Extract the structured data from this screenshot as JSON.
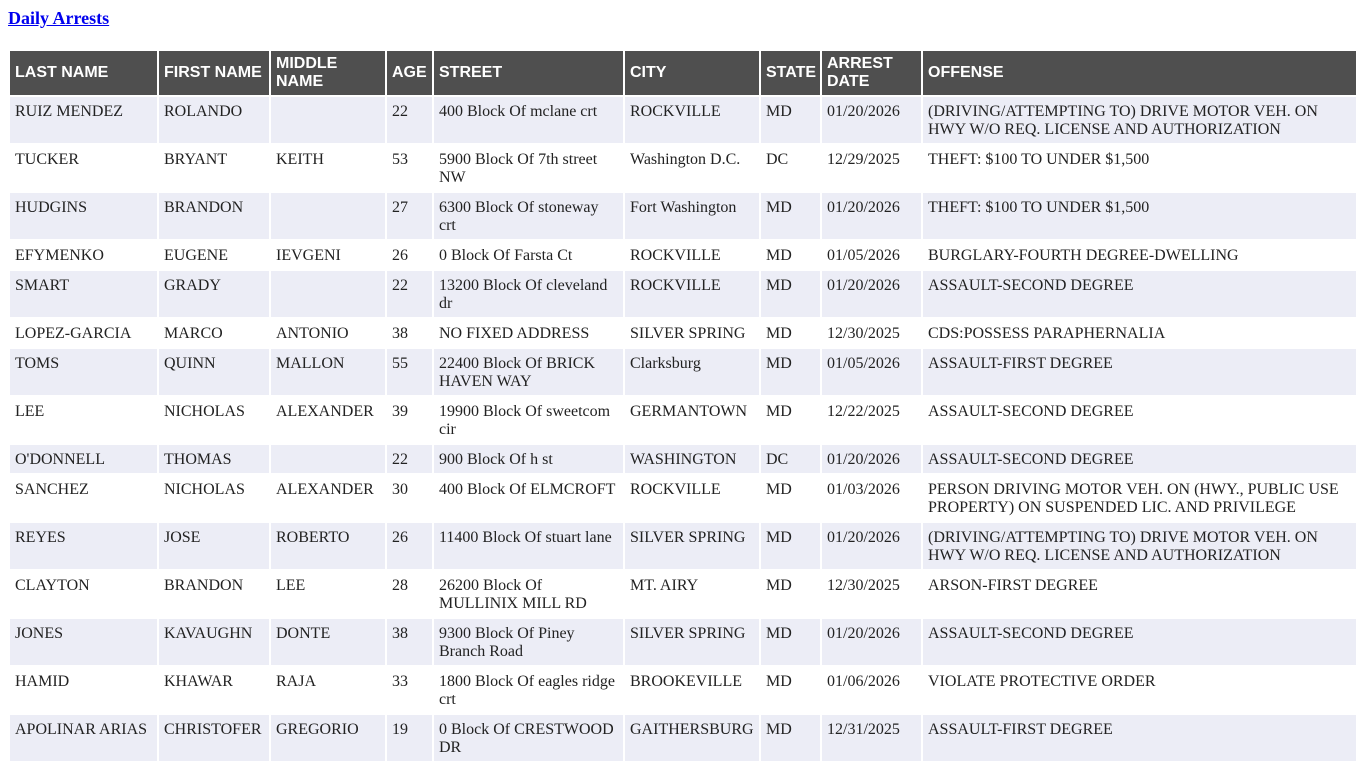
{
  "header": {
    "link_label": "Daily Arrests"
  },
  "table": {
    "columns": [
      "LAST NAME",
      "FIRST NAME",
      "MIDDLE NAME",
      "AGE",
      "STREET",
      "CITY",
      "STATE",
      "ARREST DATE",
      "OFFENSE"
    ],
    "rows": [
      [
        "RUIZ MENDEZ",
        "ROLANDO",
        "",
        "22",
        "400 Block Of mclane crt",
        "ROCKVILLE",
        "MD",
        "01/20/2026",
        "(DRIVING/ATTEMPTING TO) DRIVE MOTOR VEH. ON HWY W/O REQ. LICENSE AND AUTHORIZATION"
      ],
      [
        "TUCKER",
        "BRYANT",
        "KEITH",
        "53",
        "5900 Block Of 7th street NW",
        "Washington D.C.",
        "DC",
        "12/29/2025",
        "THEFT: $100 TO UNDER $1,500"
      ],
      [
        "HUDGINS",
        "BRANDON",
        "",
        "27",
        "6300 Block Of stoneway crt",
        "Fort Washington",
        "MD",
        "01/20/2026",
        "THEFT: $100 TO UNDER $1,500"
      ],
      [
        "EFYMENKO",
        "EUGENE",
        "IEVGENI",
        "26",
        "0 Block Of Farsta Ct",
        "ROCKVILLE",
        "MD",
        "01/05/2026",
        "BURGLARY-FOURTH DEGREE-DWELLING"
      ],
      [
        "SMART",
        "GRADY",
        "",
        "22",
        "13200 Block Of cleveland dr",
        "ROCKVILLE",
        "MD",
        "01/20/2026",
        "ASSAULT-SECOND DEGREE"
      ],
      [
        "LOPEZ-GARCIA",
        "MARCO",
        "ANTONIO",
        "38",
        "NO FIXED ADDRESS",
        "SILVER SPRING",
        "MD",
        "12/30/2025",
        "CDS:POSSESS PARAPHERNALIA"
      ],
      [
        "TOMS",
        "QUINN",
        "MALLON",
        "55",
        "22400 Block Of BRICK HAVEN WAY",
        "Clarksburg",
        "MD",
        "01/05/2026",
        "ASSAULT-FIRST DEGREE"
      ],
      [
        "LEE",
        "NICHOLAS",
        "ALEXANDER",
        "39",
        "19900 Block Of sweetcom cir",
        "GERMANTOWN",
        "MD",
        "12/22/2025",
        "ASSAULT-SECOND DEGREE"
      ],
      [
        "O'DONNELL",
        "THOMAS",
        "",
        "22",
        "900 Block Of h st",
        "WASHINGTON",
        "DC",
        "01/20/2026",
        "ASSAULT-SECOND DEGREE"
      ],
      [
        "SANCHEZ",
        "NICHOLAS",
        "ALEXANDER",
        "30",
        "400 Block Of ELMCROFT",
        "ROCKVILLE",
        "MD",
        "01/03/2026",
        "PERSON DRIVING MOTOR VEH. ON (HWY., PUBLIC USE PROPERTY) ON SUSPENDED LIC. AND PRIVILEGE"
      ],
      [
        "REYES",
        "JOSE",
        "ROBERTO",
        "26",
        "11400 Block Of stuart lane",
        "SILVER SPRING",
        "MD",
        "01/20/2026",
        "(DRIVING/ATTEMPTING TO) DRIVE MOTOR VEH. ON HWY W/O REQ. LICENSE AND AUTHORIZATION"
      ],
      [
        "CLAYTON",
        "BRANDON",
        "LEE",
        "28",
        "26200 Block Of MULLINIX MILL RD",
        "MT. AIRY",
        "MD",
        "12/30/2025",
        "ARSON-FIRST DEGREE"
      ],
      [
        "JONES",
        "KAVAUGHN",
        "DONTE",
        "38",
        "9300 Block Of Piney Branch Road",
        "SILVER SPRING",
        "MD",
        "01/20/2026",
        "ASSAULT-SECOND DEGREE"
      ],
      [
        "HAMID",
        "KHAWAR",
        "RAJA",
        "33",
        "1800 Block Of eagles ridge crt",
        "BROOKEVILLE",
        "MD",
        "01/06/2026",
        "VIOLATE PROTECTIVE ORDER"
      ],
      [
        "APOLINAR ARIAS",
        "CHRISTOFER",
        "GREGORIO",
        "19",
        "0 Block Of CRESTWOOD DR",
        "GAITHERSBURG",
        "MD",
        "12/31/2025",
        "ASSAULT-FIRST DEGREE"
      ]
    ]
  }
}
